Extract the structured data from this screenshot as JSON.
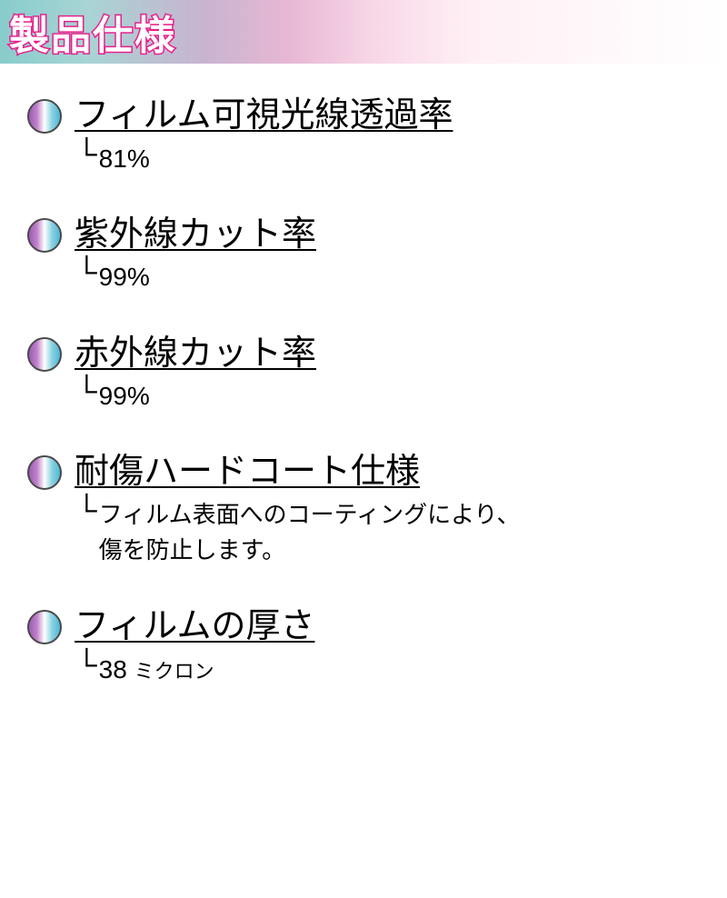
{
  "header": {
    "title": "製品仕様",
    "gradient_colors": [
      "#88cccc",
      "#c8b4d0",
      "#e8b8d4",
      "#ffffff"
    ],
    "title_stroke_color": "#e91e8c",
    "title_fill_color": "#ffffff",
    "title_fontsize": 44
  },
  "bullet_style": {
    "gradient_colors": [
      "#9c5bb8",
      "#c080c8",
      "#ffffff",
      "#88d0e0",
      "#4db8d8"
    ],
    "border_color": "#4a4a4a",
    "diameter": 38
  },
  "specs": [
    {
      "label": "フィルム可視光線透過率",
      "value": "81%"
    },
    {
      "label": "紫外線カット率",
      "value": "99%"
    },
    {
      "label": "赤外線カット率",
      "value": "99%"
    },
    {
      "label": "耐傷ハードコート仕様",
      "value": "フィルム表面へのコーティングにより、",
      "value_line2": "傷を防止します。"
    },
    {
      "label": "フィルムの厚さ",
      "value": "38 ",
      "unit": "ミクロン"
    }
  ],
  "corner_glyph": "└"
}
